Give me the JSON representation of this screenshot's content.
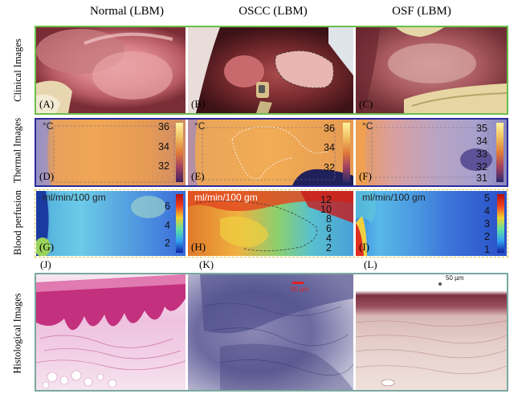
{
  "columns": [
    "Normal (LBM)",
    "OSCC (LBM)",
    "OSF (LBM)"
  ],
  "rows": [
    "Clinical Images",
    "Thermal Images",
    "Blood perfusion",
    "Histological Images"
  ],
  "panel_labels": [
    "(A)",
    "(B)",
    "(C)",
    "(D)",
    "(E)",
    "(F)",
    "(G)",
    "(H)",
    "(I)",
    "(J)",
    "(K)",
    "(L)"
  ],
  "thermal": {
    "unit": "°C",
    "normal_ticks": [
      "36",
      "34",
      "32"
    ],
    "oscc_ticks": [
      "36",
      "34",
      "32"
    ],
    "osf_ticks": [
      "35",
      "34",
      "33",
      "32",
      "31"
    ]
  },
  "perfusion": {
    "unit": "ml/min/100 gm",
    "normal_ticks": [
      "6",
      "4",
      "2"
    ],
    "oscc_ticks": [
      "12",
      "10",
      "8",
      "6",
      "4",
      "2"
    ],
    "osf_ticks": [
      "5",
      "4",
      "3",
      "2",
      "1"
    ]
  },
  "histology": {
    "oscc_scale": "50 µm",
    "osf_scale": "50 µm"
  },
  "colors": {
    "green_frame": "#6abf4b",
    "blue_frame": "#2a2a9a",
    "yellow_frame": "#d8c84a",
    "teal_frame": "#7aa9a0"
  }
}
